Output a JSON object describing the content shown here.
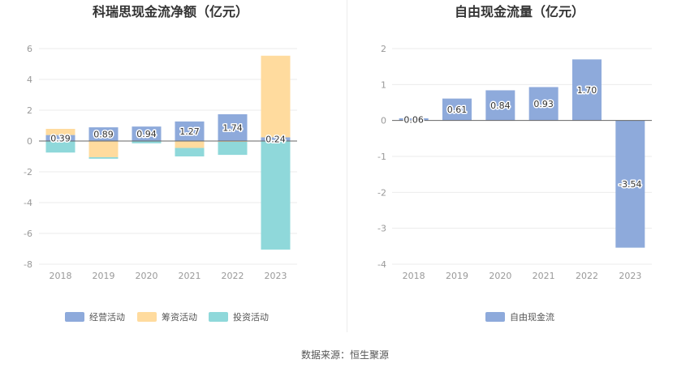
{
  "source_text": "数据来源：恒生聚源",
  "chart_data": [
    {
      "type": "bar",
      "stacked": true,
      "title": "科瑞思现金流净额（亿元）",
      "categories": [
        "2018",
        "2019",
        "2020",
        "2021",
        "2022",
        "2023"
      ],
      "ylim": [
        -8,
        6
      ],
      "yticks": [
        6,
        4,
        2,
        0,
        -2,
        -4,
        -6,
        -8
      ],
      "grid": true,
      "legend_position": "bottom",
      "series": [
        {
          "name": "经营活动",
          "color": "#8eaadb",
          "values": [
            0.39,
            0.89,
            0.94,
            1.27,
            1.74,
            0.24
          ],
          "labels": [
            "0.39",
            "0.89",
            "0.94",
            "1.27",
            "1.74",
            "0.24"
          ]
        },
        {
          "name": "筹资活动",
          "color": "#ffdb9e",
          "values": [
            0.4,
            -1.05,
            0.0,
            -0.45,
            -0.05,
            5.3
          ]
        },
        {
          "name": "投资活动",
          "color": "#8fd8da",
          "values": [
            -0.75,
            -0.1,
            -0.15,
            -0.55,
            -0.85,
            -7.05
          ]
        }
      ]
    },
    {
      "type": "bar",
      "title": "自由现金流量（亿元）",
      "categories": [
        "2018",
        "2019",
        "2020",
        "2021",
        "2022",
        "2023"
      ],
      "ylim": [
        -4,
        2
      ],
      "yticks": [
        2,
        1,
        0,
        -1,
        -2,
        -3,
        -4
      ],
      "grid": true,
      "legend_position": "bottom",
      "series": [
        {
          "name": "自由现金流",
          "color": "#8eaadb",
          "values": [
            0.06,
            0.61,
            0.84,
            0.93,
            1.7,
            -3.54
          ],
          "labels": [
            "0.06",
            "0.61",
            "0.84",
            "0.93",
            "1.70",
            "-3.54"
          ]
        }
      ]
    }
  ]
}
